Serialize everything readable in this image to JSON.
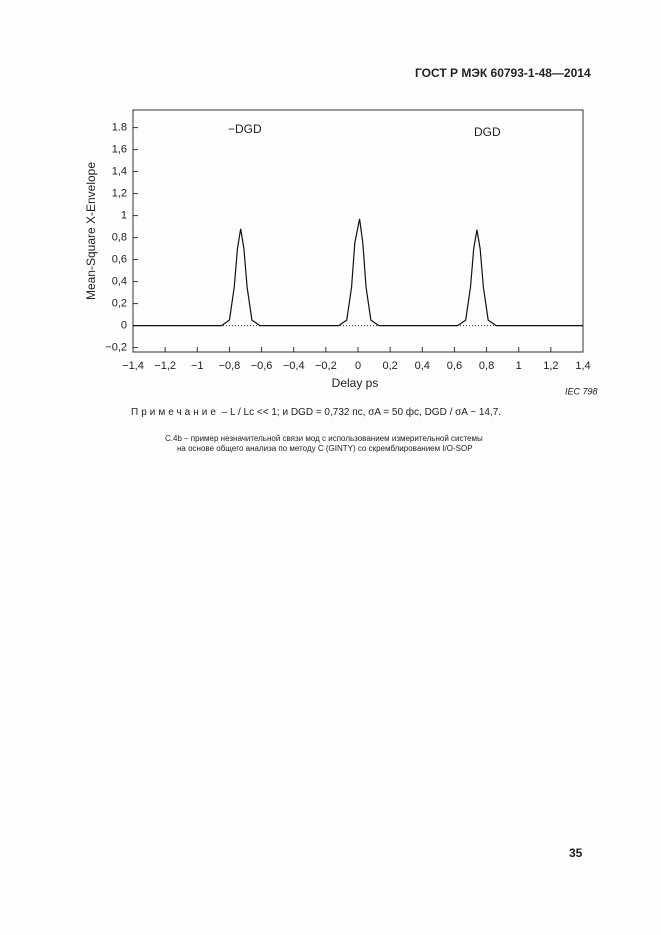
{
  "header": {
    "title": "ГОСТ Р МЭК 60793-1-48—2014"
  },
  "chart_data": {
    "type": "line",
    "y_label": "Mean-Square  X-Envelope",
    "x_label": "Delay  ps",
    "annotations": [
      "−DGD",
      "DGD",
      "IEC  798"
    ],
    "x": [
      -1.4,
      -0.85,
      -0.8,
      -0.77,
      -0.75,
      -0.73,
      -0.71,
      -0.69,
      -0.66,
      -0.61,
      -0.12,
      -0.07,
      -0.04,
      -0.02,
      0.01,
      0.03,
      0.05,
      0.08,
      0.13,
      0.62,
      0.67,
      0.7,
      0.72,
      0.74,
      0.76,
      0.78,
      0.81,
      0.86,
      1.4
    ],
    "series": [
      {
        "color": "#111111",
        "values": [
          0,
          0,
          0.05,
          0.35,
          0.7,
          0.88,
          0.7,
          0.35,
          0.05,
          0,
          0,
          0.05,
          0.35,
          0.75,
          0.97,
          0.75,
          0.35,
          0.05,
          0,
          0,
          0.05,
          0.35,
          0.7,
          0.87,
          0.7,
          0.35,
          0.05,
          0,
          0
        ]
      }
    ],
    "xlim": [
      -1.4,
      1.4
    ],
    "ylim": [
      -0.24,
      1.96
    ],
    "xticks": [
      {
        "value": -1.4,
        "label": "−1,4"
      },
      {
        "value": -1.2,
        "label": "−1,2"
      },
      {
        "value": -1,
        "label": "−1"
      },
      {
        "value": -0.8,
        "label": "−0,8"
      },
      {
        "value": -0.6,
        "label": "−0,6"
      },
      {
        "value": -0.4,
        "label": "−0,4"
      },
      {
        "value": -0.2,
        "label": "−0,2"
      },
      0,
      {
        "value": 0.2,
        "label": "0,2"
      },
      {
        "value": 0.4,
        "label": "0,4"
      },
      {
        "value": 0.6,
        "label": "0,6"
      },
      {
        "value": 0.8,
        "label": "0,8"
      },
      1,
      {
        "value": 1.2,
        "label": "1,2"
      },
      {
        "value": 1.4,
        "label": "1,4"
      }
    ],
    "yticks": [
      {
        "value": -0.2,
        "label": "−0,2"
      },
      0,
      {
        "value": 0.2,
        "label": "0,2"
      },
      {
        "value": 0.4,
        "label": "0,4"
      },
      {
        "value": 0.6,
        "label": "0,6"
      },
      {
        "value": 0.8,
        "label": "0,8"
      },
      1,
      {
        "value": 1.2,
        "label": "1,2"
      },
      {
        "value": 1.4,
        "label": "1,4"
      },
      {
        "value": 1.6,
        "label": "1,6"
      },
      {
        "value": 1.8,
        "label": "1.8"
      }
    ]
  },
  "note": {
    "label": "Примечание",
    "text": " – L / Lc << 1; и DGD = 0,732 пс, σA = 50 фс, DGD / σA ~ 14,7."
  },
  "caption": [
    "С.4b – пример незначительной связи мод с использованием измерительной системы",
    "на основе общего анализа по методу С (GINTY) со скремблированием I/O-SOP"
  ],
  "page_number": "35"
}
